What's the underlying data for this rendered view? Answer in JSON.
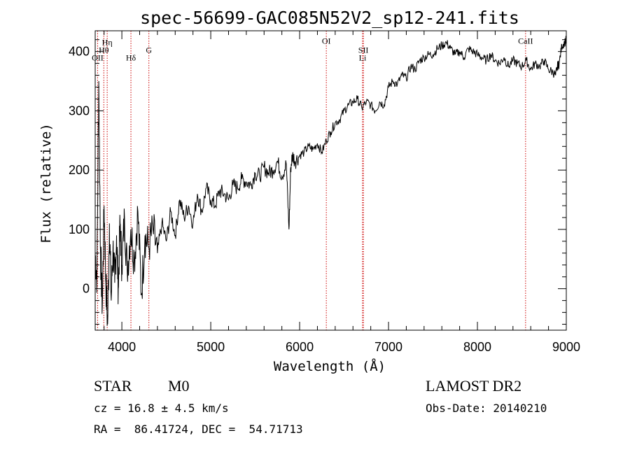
{
  "chart_data": {
    "type": "line",
    "title": "spec-56699-GAC085N52V2_sp12-241.fits",
    "xlabel": "Wavelength (Å)",
    "ylabel": "Flux (relative)",
    "xlim": [
      3700,
      9000
    ],
    "ylim": [
      -70,
      435
    ],
    "x_ticks": [
      4000,
      5000,
      6000,
      7000,
      8000,
      9000
    ],
    "y_ticks": [
      0,
      100,
      200,
      300,
      400
    ],
    "line_color": "#000000",
    "marker_color": "#cc0000",
    "spectral_lines": [
      {
        "label": "OII",
        "x": 3727,
        "label_y": 385
      },
      {
        "label": "Hη",
        "x": 3835,
        "label_y": 411
      },
      {
        "label": "Hθ",
        "x": 3797,
        "label_y": 398
      },
      {
        "label": "Hδ",
        "x": 4102,
        "label_y": 385
      },
      {
        "label": "G",
        "x": 4304,
        "label_y": 398
      },
      {
        "label": "OI",
        "x": 6300,
        "label_y": 413
      },
      {
        "label": "SII",
        "x": 6717,
        "label_y": 398
      },
      {
        "label": "Li",
        "x": 6708,
        "label_y": 385
      },
      {
        "label": "CaII",
        "x": 8542,
        "label_y": 413
      }
    ],
    "spectrum": {
      "x": [
        3700,
        3720,
        3740,
        3760,
        3780,
        3800,
        3820,
        3840,
        3860,
        3880,
        3900,
        3920,
        3940,
        3960,
        3980,
        4000,
        4030,
        4060,
        4100,
        4140,
        4180,
        4220,
        4260,
        4300,
        4350,
        4400,
        4450,
        4500,
        4550,
        4600,
        4650,
        4700,
        4750,
        4800,
        4850,
        4900,
        4950,
        5000,
        5050,
        5100,
        5150,
        5200,
        5250,
        5300,
        5350,
        5400,
        5450,
        5500,
        5550,
        5600,
        5650,
        5700,
        5750,
        5800,
        5850,
        5880,
        5900,
        5920,
        5950,
        6000,
        6050,
        6100,
        6150,
        6200,
        6250,
        6300,
        6350,
        6400,
        6450,
        6500,
        6550,
        6600,
        6650,
        6700,
        6750,
        6800,
        6850,
        6900,
        6950,
        7000,
        7050,
        7100,
        7150,
        7200,
        7250,
        7300,
        7350,
        7400,
        7450,
        7500,
        7550,
        7600,
        7650,
        7700,
        7750,
        7800,
        7850,
        7900,
        7950,
        8000,
        8050,
        8100,
        8150,
        8200,
        8250,
        8300,
        8350,
        8400,
        8450,
        8500,
        8550,
        8600,
        8650,
        8700,
        8750,
        8800,
        8850,
        8880,
        8900,
        8920,
        8950,
        8980,
        9000
      ],
      "y": [
        60,
        20,
        350,
        60,
        -30,
        140,
        10,
        -60,
        110,
        -20,
        70,
        10,
        90,
        0,
        110,
        40,
        120,
        30,
        100,
        50,
        130,
        -10,
        90,
        70,
        100,
        60,
        110,
        80,
        130,
        90,
        150,
        120,
        140,
        110,
        160,
        130,
        170,
        150,
        140,
        165,
        160,
        150,
        175,
        170,
        185,
        180,
        175,
        195,
        190,
        205,
        195,
        200,
        215,
        190,
        210,
        100,
        205,
        225,
        215,
        225,
        230,
        240,
        235,
        245,
        230,
        250,
        265,
        280,
        285,
        300,
        310,
        315,
        320,
        305,
        315,
        310,
        300,
        315,
        310,
        340,
        350,
        345,
        360,
        355,
        375,
        370,
        385,
        390,
        395,
        395,
        405,
        410,
        415,
        405,
        395,
        400,
        390,
        405,
        400,
        395,
        390,
        385,
        395,
        385,
        380,
        390,
        375,
        385,
        380,
        375,
        385,
        370,
        380,
        375,
        385,
        370,
        365,
        360,
        375,
        380,
        410,
        415,
        420
      ]
    }
  },
  "info": {
    "class": "STAR",
    "subclass": "M0",
    "survey": "LAMOST DR2",
    "cz": "cz = 16.8 ± 4.5 km/s",
    "obs_date": "Obs-Date: 20140210",
    "radec": "RA =  86.41724, DEC =  54.71713"
  }
}
